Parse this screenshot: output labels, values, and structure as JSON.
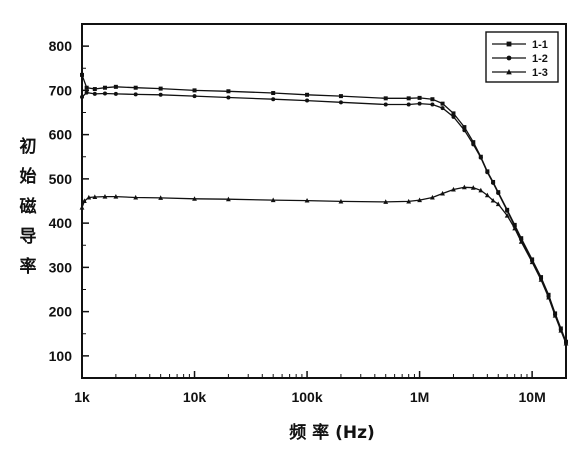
{
  "chart_data": {
    "type": "line",
    "title": "",
    "xlabel": "频 率 (Hz)",
    "ylabel": "初始磁导率",
    "xscale": "log",
    "xlim": [
      1000,
      20000000
    ],
    "ylim": [
      50,
      850
    ],
    "x_ticks": [
      1000,
      10000,
      100000,
      1000000,
      10000000
    ],
    "x_tick_labels": [
      "1k",
      "10k",
      "100k",
      "1M",
      "10M"
    ],
    "y_ticks": [
      100,
      200,
      300,
      400,
      500,
      600,
      700,
      800
    ],
    "y_tick_labels": [
      "100",
      "200",
      "300",
      "400",
      "500",
      "600",
      "700",
      "800"
    ],
    "grid": false,
    "legend_position": "top-right",
    "series": [
      {
        "name": "1-1",
        "marker": "square",
        "points": [
          [
            1000,
            735
          ],
          [
            1100,
            706
          ],
          [
            1300,
            703
          ],
          [
            1600,
            706
          ],
          [
            2000,
            708
          ],
          [
            3000,
            706
          ],
          [
            5000,
            704
          ],
          [
            10000,
            700
          ],
          [
            20000,
            698
          ],
          [
            50000,
            694
          ],
          [
            100000,
            690
          ],
          [
            200000,
            687
          ],
          [
            500000,
            682
          ],
          [
            800000,
            682
          ],
          [
            1000000,
            683
          ],
          [
            1300000,
            680
          ],
          [
            1600000,
            670
          ],
          [
            2000000,
            648
          ],
          [
            2500000,
            617
          ],
          [
            3000000,
            583
          ],
          [
            3500000,
            550
          ],
          [
            4000000,
            517
          ],
          [
            4500000,
            493
          ],
          [
            5000000,
            470
          ],
          [
            6000000,
            430
          ],
          [
            7000000,
            396
          ],
          [
            8000000,
            366
          ],
          [
            10000000,
            318
          ],
          [
            12000000,
            278
          ],
          [
            14000000,
            238
          ],
          [
            16000000,
            196
          ],
          [
            18000000,
            162
          ],
          [
            20000000,
            132
          ]
        ]
      },
      {
        "name": "1-2",
        "marker": "circle",
        "points": [
          [
            1000,
            685
          ],
          [
            1100,
            695
          ],
          [
            1300,
            692
          ],
          [
            1600,
            693
          ],
          [
            2000,
            692
          ],
          [
            3000,
            691
          ],
          [
            5000,
            690
          ],
          [
            10000,
            687
          ],
          [
            20000,
            684
          ],
          [
            50000,
            680
          ],
          [
            100000,
            677
          ],
          [
            200000,
            673
          ],
          [
            500000,
            668
          ],
          [
            800000,
            668
          ],
          [
            1000000,
            670
          ],
          [
            1300000,
            668
          ],
          [
            1600000,
            660
          ],
          [
            2000000,
            640
          ],
          [
            2500000,
            610
          ],
          [
            3000000,
            578
          ],
          [
            3500000,
            548
          ],
          [
            4000000,
            515
          ],
          [
            4500000,
            491
          ],
          [
            5000000,
            468
          ],
          [
            6000000,
            428
          ],
          [
            7000000,
            393
          ],
          [
            8000000,
            363
          ],
          [
            10000000,
            315
          ],
          [
            12000000,
            274
          ],
          [
            14000000,
            234
          ],
          [
            16000000,
            193
          ],
          [
            18000000,
            159
          ],
          [
            20000000,
            130
          ]
        ]
      },
      {
        "name": "1-3",
        "marker": "triangle",
        "points": [
          [
            1000,
            435
          ],
          [
            1050,
            450
          ],
          [
            1150,
            458
          ],
          [
            1300,
            459
          ],
          [
            1600,
            460
          ],
          [
            2000,
            460
          ],
          [
            3000,
            458
          ],
          [
            5000,
            457
          ],
          [
            10000,
            455
          ],
          [
            20000,
            454
          ],
          [
            50000,
            452
          ],
          [
            100000,
            451
          ],
          [
            200000,
            449
          ],
          [
            500000,
            448
          ],
          [
            800000,
            449
          ],
          [
            1000000,
            452
          ],
          [
            1300000,
            458
          ],
          [
            1600000,
            467
          ],
          [
            2000000,
            476
          ],
          [
            2500000,
            481
          ],
          [
            3000000,
            480
          ],
          [
            3500000,
            474
          ],
          [
            4000000,
            463
          ],
          [
            4500000,
            451
          ],
          [
            5000000,
            443
          ],
          [
            6000000,
            417
          ],
          [
            7000000,
            388
          ],
          [
            8000000,
            358
          ],
          [
            10000000,
            312
          ],
          [
            12000000,
            272
          ],
          [
            14000000,
            232
          ],
          [
            16000000,
            191
          ],
          [
            18000000,
            157
          ],
          [
            20000000,
            128
          ]
        ]
      }
    ]
  }
}
